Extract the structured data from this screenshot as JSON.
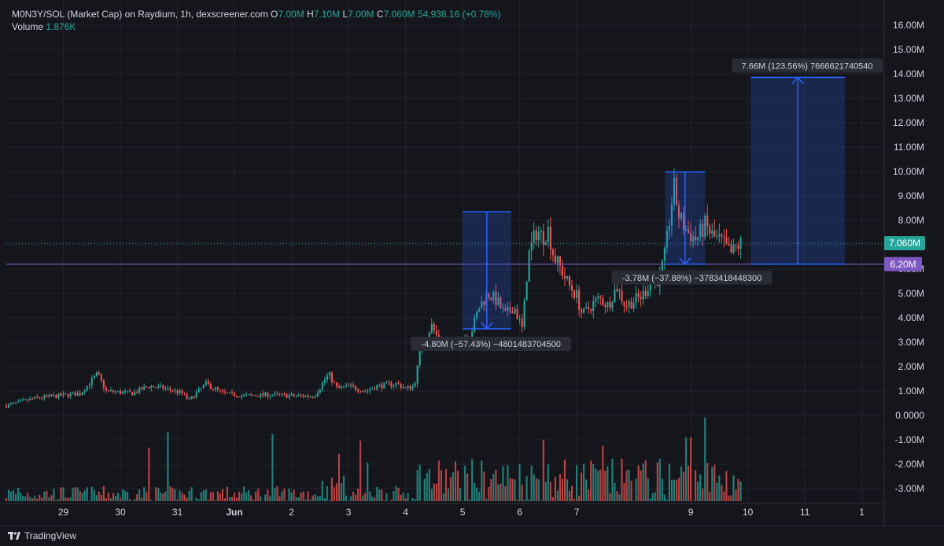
{
  "legend": {
    "symbol": "M0N3Y/SOL (Market Cap) on Raydium, 1h, dexscreener.com",
    "open_label": "O",
    "open": "7.00M",
    "high_label": "H",
    "high": "7.10M",
    "low_label": "L",
    "low": "7.00M",
    "close_label": "C",
    "close": "7.060M",
    "change": "54,938.16 (+0.78%)",
    "volume_label": "Volume",
    "volume": "1.876K"
  },
  "footer": {
    "brand": "TradingView"
  },
  "colors": {
    "up": "#26a69a",
    "down": "#ef5350",
    "measure": "#2962ff",
    "hline": "#7e57c2",
    "price_tag": "#26a69a"
  },
  "chart_data": {
    "type": "candlestick",
    "y_ticks": [
      "16.00M",
      "15.00M",
      "14.00M",
      "13.00M",
      "12.00M",
      "11.00M",
      "10.00M",
      "9.00M",
      "8.00M",
      "7.00M",
      "6.00M",
      "5.00M",
      "4.00M",
      "3.00M",
      "2.00M",
      "1.00M",
      "0.0000",
      "-1.00M",
      "-2.00M",
      "-3.00M"
    ],
    "ylim": [
      -3.3,
      16.6
    ],
    "x_ticks": [
      {
        "label": "29",
        "day": 29
      },
      {
        "label": "30",
        "day": 30
      },
      {
        "label": "31",
        "day": 31
      },
      {
        "label": "Jun",
        "day": 32
      },
      {
        "label": "2",
        "day": 33
      },
      {
        "label": "3",
        "day": 34
      },
      {
        "label": "4",
        "day": 35
      },
      {
        "label": "5",
        "day": 36
      },
      {
        "label": "6",
        "day": 37
      },
      {
        "label": "7",
        "day": 38
      },
      {
        "label": "9",
        "day": 40
      },
      {
        "label": "10",
        "day": 41
      },
      {
        "label": "11",
        "day": 42
      },
      {
        "label": "1",
        "day": 43
      }
    ],
    "x_start_day": 28.0,
    "x_end_day": 43.0,
    "last_price": 7.06,
    "last_price_label": "7.060M",
    "hline": 6.2,
    "hline_label": "6.20M",
    "price_path": [
      [
        28.0,
        0.4
      ],
      [
        28.5,
        0.7
      ],
      [
        28.9,
        0.8
      ],
      [
        29.3,
        0.9
      ],
      [
        29.6,
        1.7
      ],
      [
        29.75,
        1.0
      ],
      [
        30.2,
        0.9
      ],
      [
        30.5,
        1.2
      ],
      [
        30.8,
        1.1
      ],
      [
        31.1,
        0.9
      ],
      [
        31.2,
        0.6
      ],
      [
        31.5,
        1.3
      ],
      [
        31.8,
        0.9
      ],
      [
        32.2,
        0.8
      ],
      [
        32.6,
        0.85
      ],
      [
        33.0,
        0.8
      ],
      [
        33.4,
        0.8
      ],
      [
        33.65,
        1.7
      ],
      [
        33.8,
        1.1
      ],
      [
        34.0,
        1.2
      ],
      [
        34.3,
        1.0
      ],
      [
        34.5,
        1.2
      ],
      [
        34.85,
        1.3
      ],
      [
        35.0,
        1.1
      ],
      [
        35.15,
        1.2
      ],
      [
        35.25,
        2.5
      ],
      [
        35.45,
        3.7
      ],
      [
        35.6,
        3.0
      ],
      [
        35.85,
        2.8
      ],
      [
        36.0,
        3.2
      ],
      [
        36.15,
        3.4
      ],
      [
        36.3,
        4.5
      ],
      [
        36.45,
        5.0
      ],
      [
        36.6,
        4.7
      ],
      [
        36.75,
        4.1
      ],
      [
        36.9,
        4.5
      ],
      [
        37.05,
        3.5
      ],
      [
        37.15,
        6.5
      ],
      [
        37.3,
        7.6
      ],
      [
        37.4,
        7.3
      ],
      [
        37.5,
        7.6
      ],
      [
        37.6,
        6.5
      ],
      [
        37.7,
        6.1
      ],
      [
        37.85,
        5.4
      ],
      [
        38.0,
        4.9
      ],
      [
        38.1,
        4.1
      ],
      [
        38.25,
        4.5
      ],
      [
        38.4,
        4.8
      ],
      [
        38.55,
        4.5
      ],
      [
        38.7,
        5.3
      ],
      [
        38.85,
        4.5
      ],
      [
        39.0,
        4.7
      ],
      [
        39.15,
        4.9
      ],
      [
        39.3,
        5.5
      ],
      [
        39.45,
        5.6
      ],
      [
        39.55,
        6.6
      ],
      [
        39.7,
        9.4
      ],
      [
        39.8,
        8.1
      ],
      [
        39.95,
        7.5
      ],
      [
        40.1,
        7.2
      ],
      [
        40.25,
        7.8
      ],
      [
        40.4,
        7.3
      ],
      [
        40.55,
        7.1
      ],
      [
        40.7,
        6.6
      ],
      [
        40.8,
        6.9
      ],
      [
        40.9,
        7.1
      ]
    ],
    "measure_tools": [
      {
        "type": "short",
        "day_start": 36.0,
        "day_end": 36.85,
        "from": 8.35,
        "to": 3.55,
        "label": "-4.80M (−57.43%) −4801483704500"
      },
      {
        "type": "short",
        "day_start": 39.55,
        "day_end": 40.25,
        "from": 9.98,
        "to": 6.2,
        "label": "-3.78M (−37.88%) −3783418448300"
      },
      {
        "type": "long",
        "day_start": 41.05,
        "day_end": 42.7,
        "from": 6.2,
        "to": 13.86,
        "label": "7.66M (123.56%) 7666621740540"
      }
    ],
    "grid": true,
    "legend_position": "top-left"
  }
}
